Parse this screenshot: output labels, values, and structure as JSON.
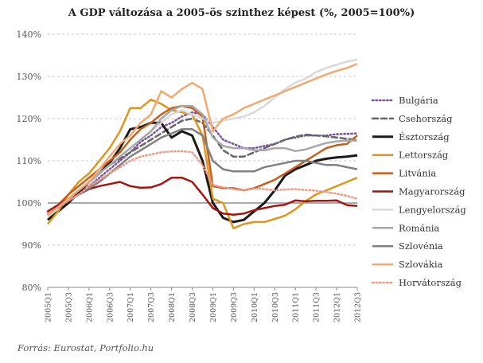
{
  "chart_data": {
    "type": "line",
    "title": "A GDP változása a 2005-ös szinthez képest (%, 2005=100%)",
    "ylim": [
      80,
      140
    ],
    "y_ticks": [
      80,
      90,
      100,
      110,
      120,
      130,
      140
    ],
    "y_tick_labels": [
      "80%",
      "90%",
      "100%",
      "110%",
      "120%",
      "130%",
      "140%"
    ],
    "x_tick_labels": [
      "2005Q1",
      "2005Q3",
      "2006Q1",
      "2006Q3",
      "2007Q1",
      "2007Q3",
      "2008Q1",
      "2008Q3",
      "2009Q1",
      "2009Q3",
      "2010Q1",
      "2010Q3",
      "2011Q1",
      "2011Q3",
      "2012Q1",
      "2012Q3"
    ],
    "grid": true,
    "legend_position": "right",
    "x": [
      "2005Q1",
      "2005Q2",
      "2005Q3",
      "2005Q4",
      "2006Q1",
      "2006Q2",
      "2006Q3",
      "2006Q4",
      "2007Q1",
      "2007Q2",
      "2007Q3",
      "2007Q4",
      "2008Q1",
      "2008Q2",
      "2008Q3",
      "2008Q4",
      "2009Q1",
      "2009Q2",
      "2009Q3",
      "2009Q4",
      "2010Q1",
      "2010Q2",
      "2010Q3",
      "2010Q4",
      "2011Q1",
      "2011Q2",
      "2011Q3",
      "2011Q4",
      "2012Q1",
      "2012Q2",
      "2012Q3"
    ],
    "series": [
      {
        "name": "Bulgária",
        "color": "#7b4fa2",
        "dash": "1.5,3",
        "width": 2.5,
        "values": [
          98,
          99.5,
          101,
          102.5,
          104,
          106,
          108,
          110,
          112,
          114.5,
          116,
          118,
          119,
          120.5,
          121.5,
          121,
          118,
          115,
          114,
          113,
          113,
          113.5,
          114,
          115,
          115.5,
          116,
          116,
          116,
          116.3,
          116.4,
          116.5
        ]
      },
      {
        "name": "Csehország",
        "color": "#666666",
        "dash": "7,4",
        "width": 2.5,
        "values": [
          98,
          99.5,
          101,
          103,
          105,
          107,
          109,
          110.5,
          112,
          113.5,
          115,
          116.5,
          118,
          119.5,
          120,
          119,
          116,
          112.5,
          111,
          111,
          112,
          113,
          114,
          115,
          115.7,
          116.2,
          116,
          115.8,
          115.5,
          115.2,
          115
        ]
      },
      {
        "name": "Észtország",
        "color": "#1a1a1a",
        "dash": "",
        "width": 3,
        "values": [
          96,
          98,
          100,
          102.5,
          105,
          107,
          109.5,
          113,
          117.5,
          118,
          119,
          119,
          115.5,
          117,
          116,
          110,
          100,
          96.5,
          95.5,
          96,
          98,
          100,
          103,
          106.5,
          108,
          109,
          110,
          110.5,
          110.8,
          111,
          111.3
        ]
      },
      {
        "name": "Lettország",
        "color": "#e0951e",
        "dash": "",
        "width": 2.5,
        "values": [
          95,
          98,
          102,
          105,
          107,
          110,
          113,
          117,
          122.5,
          122.5,
          124.5,
          123.5,
          122,
          121.5,
          121,
          116,
          101,
          100,
          94,
          95,
          95.5,
          95.5,
          96.2,
          97,
          98.5,
          100.5,
          102,
          103,
          104,
          105,
          106
        ]
      },
      {
        "name": "Litvánia",
        "color": "#c65e1c",
        "dash": "",
        "width": 2.5,
        "values": [
          97,
          99.5,
          102,
          104,
          106,
          108,
          110,
          112,
          115,
          117.5,
          119,
          121,
          122.5,
          123,
          122.5,
          120.5,
          104,
          103.5,
          103.5,
          103,
          103.5,
          104.5,
          105.5,
          107,
          108.5,
          110,
          111.5,
          113,
          113.7,
          114,
          116
        ]
      },
      {
        "name": "Magyarország",
        "color": "#a3160e",
        "dash": "",
        "width": 2.5,
        "values": [
          98,
          99.5,
          101,
          102,
          103.3,
          104,
          104.5,
          105,
          104,
          103.6,
          103.7,
          104.5,
          106,
          106,
          105,
          102,
          98.8,
          97.5,
          97.2,
          97.5,
          98.3,
          98.8,
          99.3,
          99.6,
          100.6,
          100.4,
          100.5,
          100.5,
          100.6,
          99.5,
          99.3
        ]
      },
      {
        "name": "Lengyelország",
        "color": "#d9d9d9",
        "dash": "",
        "width": 2.5,
        "values": [
          97,
          99,
          101,
          103,
          105,
          107,
          109,
          111,
          113,
          115,
          117,
          119,
          121,
          122,
          121,
          120,
          119,
          119.5,
          120,
          120.5,
          121.5,
          123,
          125,
          127,
          128.5,
          129.5,
          131,
          132,
          132.8,
          133.5,
          134
        ]
      },
      {
        "name": "Románia",
        "color": "#a8a8a8",
        "dash": "",
        "width": 2.5,
        "values": [
          97,
          99,
          101,
          103,
          105,
          107,
          109,
          111,
          113,
          115,
          117,
          120,
          122,
          123,
          123,
          121,
          115.5,
          113.5,
          113,
          113,
          112.5,
          112.5,
          113,
          113,
          112.3,
          112.7,
          113.5,
          114.2,
          114.6,
          114.8,
          114.8
        ]
      },
      {
        "name": "Szlovénia",
        "color": "#808080",
        "dash": "",
        "width": 2.5,
        "values": [
          97.5,
          99,
          100.5,
          102,
          103.5,
          105,
          107,
          109,
          111,
          112.5,
          114,
          115.5,
          116.5,
          117.5,
          117.5,
          116,
          110,
          108,
          107.5,
          107.5,
          107.5,
          108.5,
          109,
          109.5,
          110,
          110,
          109.5,
          109,
          109,
          108.5,
          108
        ]
      },
      {
        "name": "Szlovákia",
        "color": "#f2a96f",
        "dash": "",
        "width": 2.5,
        "values": [
          97,
          99,
          101,
          103,
          105,
          108,
          111,
          114,
          116,
          119,
          121,
          126.5,
          125,
          127,
          128.5,
          127,
          117,
          120,
          121,
          122.5,
          123.5,
          124.5,
          125.5,
          126.5,
          127.5,
          128.5,
          129.5,
          130.5,
          131.3,
          132,
          133
        ]
      },
      {
        "name": "Horvátország",
        "color": "#ee9b88",
        "dash": "1.5,3",
        "width": 2.5,
        "values": [
          97.5,
          99,
          100.5,
          102,
          104,
          105.5,
          107,
          108.5,
          110,
          111,
          111.5,
          112,
          112.2,
          112.3,
          112,
          109,
          104.3,
          103.7,
          103.3,
          103,
          103.4,
          103.3,
          103,
          103.2,
          103.3,
          103.1,
          102.9,
          102.6,
          102.2,
          101.7,
          101
        ]
      }
    ]
  },
  "source": "Forrás: Eurostat, Portfolio.hu"
}
